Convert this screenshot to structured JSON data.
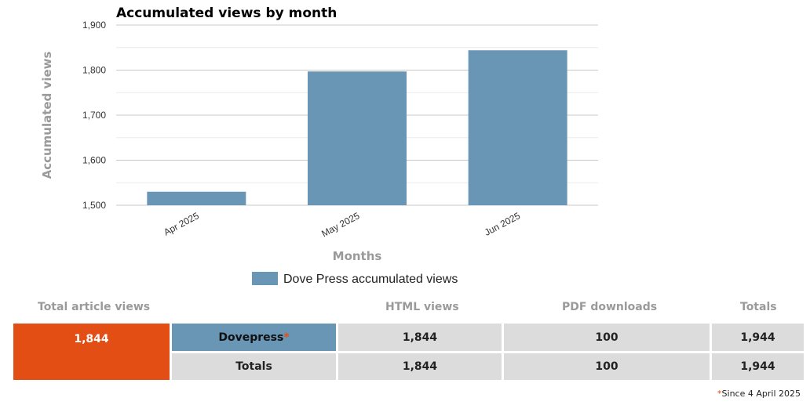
{
  "chart_data": {
    "type": "bar",
    "title": "Accumulated views by month",
    "xlabel": "Months",
    "ylabel": "Accumulated views",
    "categories": [
      "Apr 2025",
      "May 2025",
      "Jun 2025"
    ],
    "series": [
      {
        "name": "Dove Press accumulated views",
        "values": [
          1530,
          1797,
          1844
        ],
        "color": "#6a96b6"
      }
    ],
    "ylim": [
      1500,
      1900
    ],
    "yticks": [
      1500,
      1600,
      1700,
      1800,
      1900
    ],
    "ytick_labels": [
      "1,500",
      "1,600",
      "1,700",
      "1,800",
      "1,900"
    ],
    "grid": true,
    "legend_position": "bottom"
  },
  "stats": {
    "headers": {
      "total_article_views": "Total article views",
      "html_views": "HTML views",
      "pdf_downloads": "PDF downloads",
      "totals": "Totals"
    },
    "total_views_value": "1,844",
    "rows": [
      {
        "label": "Dovepress",
        "asterisk": "*",
        "html": "1,844",
        "pdf": "100",
        "total": "1,944"
      },
      {
        "label": "Totals",
        "html": "1,844",
        "pdf": "100",
        "total": "1,944"
      }
    ],
    "footnote_asterisk": "*",
    "footnote_text": "Since 4 April 2025",
    "colors": {
      "orange": "#e24e14",
      "blue": "#6a96b6",
      "gray": "#dcdcdc"
    }
  }
}
